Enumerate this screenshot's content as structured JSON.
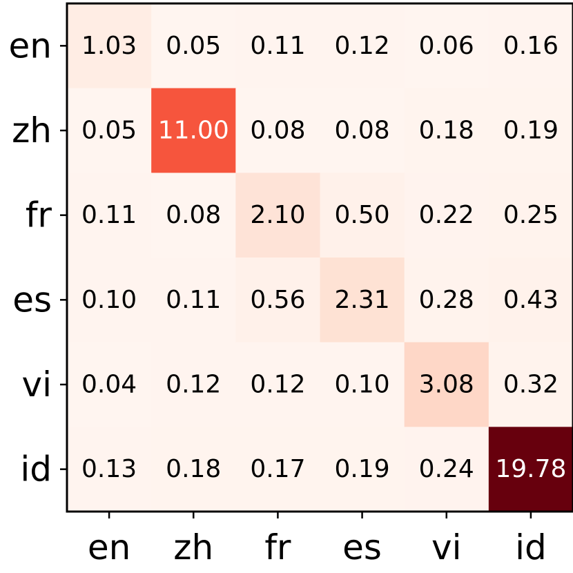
{
  "chart_data": {
    "type": "heatmap",
    "title": "",
    "xlabel": "",
    "ylabel": "",
    "x_categories": [
      "en",
      "zh",
      "fr",
      "es",
      "vi",
      "id"
    ],
    "y_categories": [
      "en",
      "zh",
      "fr",
      "es",
      "vi",
      "id"
    ],
    "values": [
      [
        1.03,
        0.05,
        0.11,
        0.12,
        0.06,
        0.16
      ],
      [
        0.05,
        11.0,
        0.08,
        0.08,
        0.18,
        0.19
      ],
      [
        0.11,
        0.08,
        2.1,
        0.5,
        0.22,
        0.25
      ],
      [
        0.1,
        0.11,
        0.56,
        2.31,
        0.28,
        0.43
      ],
      [
        0.04,
        0.12,
        0.12,
        0.1,
        3.08,
        0.32
      ],
      [
        0.13,
        0.18,
        0.17,
        0.19,
        0.24,
        19.78
      ]
    ],
    "value_labels": [
      [
        "1.03",
        "0.05",
        "0.11",
        "0.12",
        "0.06",
        "0.16"
      ],
      [
        "0.05",
        "11.00",
        "0.08",
        "0.08",
        "0.18",
        "0.19"
      ],
      [
        "0.11",
        "0.08",
        "2.10",
        "0.50",
        "0.22",
        "0.25"
      ],
      [
        "0.10",
        "0.11",
        "0.56",
        "2.31",
        "0.28",
        "0.43"
      ],
      [
        "0.04",
        "0.12",
        "0.12",
        "0.10",
        "3.08",
        "0.32"
      ],
      [
        "0.13",
        "0.18",
        "0.17",
        "0.19",
        "0.24",
        "19.78"
      ]
    ],
    "colormap": "Reds",
    "color_range": [
      0.04,
      19.78
    ],
    "colorbar": false,
    "grid": false
  }
}
